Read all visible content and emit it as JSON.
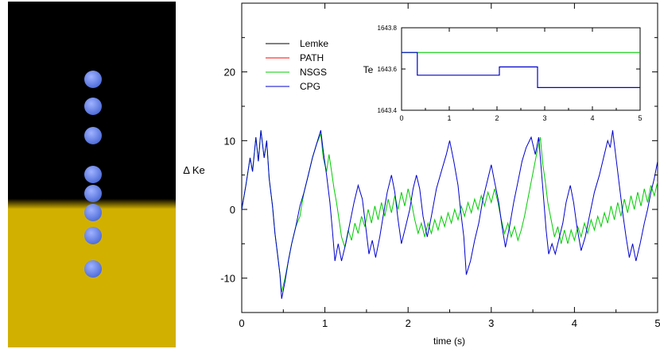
{
  "scene": {
    "colors": {
      "upper": "#000000",
      "lower": "#d2b000",
      "sphere": "#4a69d6",
      "sphere_highlight": "#9fb2ff"
    },
    "sphere_count": 8
  },
  "chart_data": [
    {
      "type": "line",
      "title": "",
      "xlabel": "time (s)",
      "ylabel": "Δ Ke",
      "xlim": [
        0,
        5
      ],
      "ylim": [
        -15,
        30
      ],
      "xticks": [
        "0",
        "1",
        "2",
        "3",
        "4",
        "5"
      ],
      "yticks": [
        "20",
        "10",
        "0",
        "-10"
      ],
      "grid": false,
      "legend": "top-left",
      "series": [
        {
          "name": "Lemke",
          "color": "#000000"
        },
        {
          "name": "PATH",
          "color": "#ff0000"
        },
        {
          "name": "NSGS",
          "color": "#00cc00"
        },
        {
          "name": "CPG",
          "color": "#0000cc"
        }
      ],
      "cpg_points": [
        [
          0.0,
          0
        ],
        [
          0.05,
          3.5
        ],
        [
          0.1,
          7.5
        ],
        [
          0.13,
          5.5
        ],
        [
          0.17,
          10.5
        ],
        [
          0.2,
          7.0
        ],
        [
          0.23,
          11.5
        ],
        [
          0.27,
          7.5
        ],
        [
          0.3,
          10.0
        ],
        [
          0.33,
          4.5
        ],
        [
          0.37,
          0.5
        ],
        [
          0.4,
          -3.5
        ],
        [
          0.43,
          -6.5
        ],
        [
          0.46,
          -9.5
        ],
        [
          0.48,
          -13.0
        ],
        [
          0.52,
          -10.5
        ],
        [
          0.56,
          -7.5
        ],
        [
          0.6,
          -5.0
        ],
        [
          0.65,
          -2.5
        ],
        [
          0.7,
          0.5
        ],
        [
          0.75,
          2.5
        ],
        [
          0.8,
          5.0
        ],
        [
          0.85,
          7.5
        ],
        [
          0.9,
          9.5
        ],
        [
          0.95,
          11.5
        ],
        [
          0.98,
          8.5
        ],
        [
          1.02,
          5.0
        ],
        [
          1.06,
          1.0
        ],
        [
          1.09,
          -3.0
        ],
        [
          1.12,
          -7.5
        ],
        [
          1.16,
          -5.0
        ],
        [
          1.2,
          -7.5
        ],
        [
          1.25,
          -5.0
        ],
        [
          1.3,
          -2.0
        ],
        [
          1.35,
          1.0
        ],
        [
          1.4,
          3.5
        ],
        [
          1.45,
          1.5
        ],
        [
          1.49,
          -2.5
        ],
        [
          1.53,
          -6.5
        ],
        [
          1.57,
          -4.5
        ],
        [
          1.61,
          -7.0
        ],
        [
          1.66,
          -4.0
        ],
        [
          1.7,
          -1.0
        ],
        [
          1.75,
          2.5
        ],
        [
          1.8,
          5.0
        ],
        [
          1.84,
          2.5
        ],
        [
          1.88,
          -1.5
        ],
        [
          1.92,
          -5.0
        ],
        [
          1.97,
          -2.5
        ],
        [
          2.02,
          0.0
        ],
        [
          2.06,
          3.0
        ],
        [
          2.1,
          5.0
        ],
        [
          2.14,
          3.0
        ],
        [
          2.18,
          -1.0
        ],
        [
          2.23,
          -4.0
        ],
        [
          2.28,
          -1.0
        ],
        [
          2.34,
          3.0
        ],
        [
          2.4,
          5.5
        ],
        [
          2.46,
          8.0
        ],
        [
          2.5,
          10.0
        ],
        [
          2.55,
          7.0
        ],
        [
          2.6,
          3.5
        ],
        [
          2.63,
          0.0
        ],
        [
          2.67,
          -4.0
        ],
        [
          2.7,
          -9.5
        ],
        [
          2.75,
          -7.5
        ],
        [
          2.8,
          -4.5
        ],
        [
          2.85,
          -2.0
        ],
        [
          2.9,
          1.5
        ],
        [
          2.95,
          4.0
        ],
        [
          3.0,
          6.5
        ],
        [
          3.04,
          4.0
        ],
        [
          3.09,
          1.0
        ],
        [
          3.13,
          -2.5
        ],
        [
          3.17,
          -5.5
        ],
        [
          3.22,
          -2.5
        ],
        [
          3.27,
          1.0
        ],
        [
          3.32,
          4.0
        ],
        [
          3.37,
          7.0
        ],
        [
          3.42,
          9.0
        ],
        [
          3.48,
          10.5
        ],
        [
          3.53,
          8.0
        ],
        [
          3.57,
          10.5
        ],
        [
          3.6,
          6.0
        ],
        [
          3.63,
          1.5
        ],
        [
          3.66,
          -3.0
        ],
        [
          3.69,
          -6.5
        ],
        [
          3.73,
          -5.0
        ],
        [
          3.77,
          -6.5
        ],
        [
          3.81,
          -4.5
        ],
        [
          3.86,
          -2.0
        ],
        [
          3.9,
          1.0
        ],
        [
          3.95,
          3.5
        ],
        [
          3.99,
          1.0
        ],
        [
          4.03,
          -2.5
        ],
        [
          4.08,
          -6.0
        ],
        [
          4.13,
          -4.0
        ],
        [
          4.18,
          -1.0
        ],
        [
          4.24,
          2.5
        ],
        [
          4.3,
          5.0
        ],
        [
          4.35,
          7.5
        ],
        [
          4.4,
          10.0
        ],
        [
          4.43,
          9.0
        ],
        [
          4.46,
          11.5
        ],
        [
          4.5,
          7.5
        ],
        [
          4.54,
          3.5
        ],
        [
          4.58,
          -0.5
        ],
        [
          4.62,
          -4.0
        ],
        [
          4.66,
          -7.0
        ],
        [
          4.7,
          -5.0
        ],
        [
          4.74,
          -7.5
        ],
        [
          4.79,
          -5.0
        ],
        [
          4.84,
          -2.0
        ],
        [
          4.88,
          0.0
        ],
        [
          4.92,
          2.5
        ],
        [
          4.96,
          4.5
        ],
        [
          5.0,
          7.0
        ]
      ],
      "nsgs_points": [
        [
          0.0,
          0
        ],
        [
          0.05,
          3.5
        ],
        [
          0.1,
          7.5
        ],
        [
          0.13,
          5.5
        ],
        [
          0.17,
          10.5
        ],
        [
          0.2,
          7.0
        ],
        [
          0.23,
          11.5
        ],
        [
          0.27,
          7.5
        ],
        [
          0.3,
          10.0
        ],
        [
          0.33,
          4.5
        ],
        [
          0.37,
          0.5
        ],
        [
          0.4,
          -3.5
        ],
        [
          0.43,
          -6.5
        ],
        [
          0.46,
          -9.5
        ],
        [
          0.48,
          -12.0
        ],
        [
          0.52,
          -10.0
        ],
        [
          0.56,
          -7.5
        ],
        [
          0.6,
          -5.0
        ],
        [
          0.65,
          -2.5
        ],
        [
          0.7,
          -1.0
        ],
        [
          0.72,
          0.5
        ],
        [
          0.75,
          2.5
        ],
        [
          0.8,
          5.0
        ],
        [
          0.85,
          7.5
        ],
        [
          0.9,
          9.5
        ],
        [
          0.95,
          11.0
        ],
        [
          0.98,
          7.5
        ],
        [
          1.02,
          5.5
        ],
        [
          1.05,
          8.0
        ],
        [
          1.08,
          5.5
        ],
        [
          1.11,
          3.0
        ],
        [
          1.14,
          1.0
        ],
        [
          1.17,
          -1.5
        ],
        [
          1.2,
          -4.0
        ],
        [
          1.24,
          -5.5
        ],
        [
          1.28,
          -3.0
        ],
        [
          1.32,
          -4.5
        ],
        [
          1.36,
          -2.0
        ],
        [
          1.4,
          -3.5
        ],
        [
          1.44,
          -1.0
        ],
        [
          1.48,
          -2.5
        ],
        [
          1.52,
          0.0
        ],
        [
          1.56,
          -2.0
        ],
        [
          1.6,
          0.5
        ],
        [
          1.64,
          -1.5
        ],
        [
          1.68,
          1.0
        ],
        [
          1.72,
          -1.0
        ],
        [
          1.76,
          1.5
        ],
        [
          1.8,
          -0.5
        ],
        [
          1.84,
          2.0
        ],
        [
          1.88,
          0.0
        ],
        [
          1.92,
          2.5
        ],
        [
          1.96,
          0.5
        ],
        [
          2.0,
          3.0
        ],
        [
          2.04,
          1.0
        ],
        [
          2.08,
          -1.5
        ],
        [
          2.12,
          -3.5
        ],
        [
          2.16,
          -2.0
        ],
        [
          2.2,
          -4.0
        ],
        [
          2.24,
          -2.0
        ],
        [
          2.28,
          -3.5
        ],
        [
          2.32,
          -1.5
        ],
        [
          2.36,
          -3.0
        ],
        [
          2.4,
          -1.0
        ],
        [
          2.44,
          -2.5
        ],
        [
          2.48,
          -0.5
        ],
        [
          2.52,
          -2.0
        ],
        [
          2.56,
          0.0
        ],
        [
          2.6,
          -1.5
        ],
        [
          2.64,
          0.5
        ],
        [
          2.68,
          -1.0
        ],
        [
          2.72,
          1.0
        ],
        [
          2.76,
          -0.5
        ],
        [
          2.8,
          1.5
        ],
        [
          2.84,
          0.0
        ],
        [
          2.88,
          2.0
        ],
        [
          2.92,
          0.5
        ],
        [
          2.96,
          2.5
        ],
        [
          3.0,
          1.0
        ],
        [
          3.04,
          3.0
        ],
        [
          3.08,
          1.0
        ],
        [
          3.12,
          -1.5
        ],
        [
          3.16,
          -3.5
        ],
        [
          3.2,
          -2.0
        ],
        [
          3.24,
          -4.0
        ],
        [
          3.28,
          -2.5
        ],
        [
          3.32,
          -4.5
        ],
        [
          3.36,
          -3.0
        ],
        [
          3.4,
          -1.0
        ],
        [
          3.44,
          1.5
        ],
        [
          3.48,
          4.0
        ],
        [
          3.52,
          6.5
        ],
        [
          3.56,
          9.0
        ],
        [
          3.59,
          10.5
        ],
        [
          3.62,
          6.5
        ],
        [
          3.65,
          4.0
        ],
        [
          3.68,
          1.0
        ],
        [
          3.72,
          -1.5
        ],
        [
          3.76,
          -4.0
        ],
        [
          3.8,
          -2.5
        ],
        [
          3.84,
          -5.0
        ],
        [
          3.88,
          -3.0
        ],
        [
          3.92,
          -5.0
        ],
        [
          3.96,
          -3.0
        ],
        [
          4.0,
          -4.5
        ],
        [
          4.04,
          -2.5
        ],
        [
          4.08,
          -4.0
        ],
        [
          4.12,
          -2.0
        ],
        [
          4.16,
          -3.5
        ],
        [
          4.2,
          -1.5
        ],
        [
          4.24,
          -3.0
        ],
        [
          4.28,
          -1.0
        ],
        [
          4.32,
          -2.5
        ],
        [
          4.36,
          -0.5
        ],
        [
          4.4,
          -2.0
        ],
        [
          4.44,
          0.5
        ],
        [
          4.48,
          -1.5
        ],
        [
          4.52,
          1.0
        ],
        [
          4.56,
          -1.0
        ],
        [
          4.6,
          1.5
        ],
        [
          4.64,
          -0.5
        ],
        [
          4.68,
          2.0
        ],
        [
          4.72,
          0.0
        ],
        [
          4.76,
          2.5
        ],
        [
          4.8,
          0.5
        ],
        [
          4.84,
          3.0
        ],
        [
          4.88,
          1.0
        ],
        [
          4.92,
          3.5
        ],
        [
          4.96,
          2.0
        ],
        [
          5.0,
          4.0
        ]
      ]
    },
    {
      "type": "line",
      "title": "",
      "xlabel": "",
      "ylabel": "Te",
      "xlim": [
        0,
        5
      ],
      "ylim": [
        1643.4,
        1643.8
      ],
      "xticks": [
        "0",
        "1",
        "2",
        "3",
        "4",
        "5"
      ],
      "yticks": [
        "1643.8",
        "1643.6",
        "1643.4"
      ],
      "series": [
        {
          "name": "NSGS",
          "color": "#00cc00",
          "points": [
            [
              0,
              1643.68
            ],
            [
              5,
              1643.68
            ]
          ]
        },
        {
          "name": "CPG",
          "color": "#0000cc",
          "points": [
            [
              0,
              1643.68
            ],
            [
              0.33,
              1643.68
            ],
            [
              0.33,
              1643.57
            ],
            [
              2.05,
              1643.57
            ],
            [
              2.05,
              1643.61
            ],
            [
              2.85,
              1643.61
            ],
            [
              2.85,
              1643.51
            ],
            [
              5,
              1643.51
            ]
          ]
        }
      ]
    }
  ]
}
